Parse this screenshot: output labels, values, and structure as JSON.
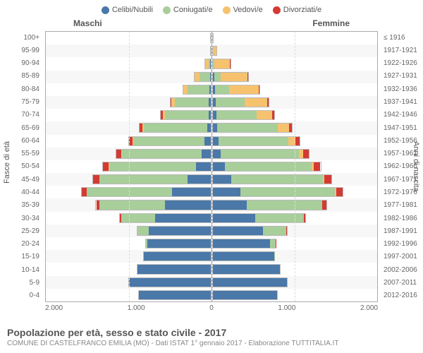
{
  "legend": [
    {
      "label": "Celibi/Nubili",
      "color": "#4a78a8"
    },
    {
      "label": "Coniugati/e",
      "color": "#a8ce9a"
    },
    {
      "label": "Vedovi/e",
      "color": "#f7c26e"
    },
    {
      "label": "Divorziati/e",
      "color": "#d43a34"
    }
  ],
  "gender": {
    "left": "Maschi",
    "right": "Femmine"
  },
  "axes": {
    "y_left_title": "Fasce di età",
    "y_right_title": "Anni di nascita",
    "x_ticks": [
      "2.000",
      "1.000",
      "0",
      "1.000",
      "2.000"
    ],
    "x_max": 2000
  },
  "rows": [
    {
      "age": "100+",
      "birth": "≤ 1916",
      "m": [
        0,
        0,
        3,
        0
      ],
      "f": [
        0,
        0,
        8,
        0
      ]
    },
    {
      "age": "95-99",
      "birth": "1917-1921",
      "m": [
        0,
        0,
        16,
        0
      ],
      "f": [
        0,
        2,
        60,
        0
      ]
    },
    {
      "age": "90-94",
      "birth": "1922-1926",
      "m": [
        2,
        30,
        50,
        0
      ],
      "f": [
        5,
        15,
        210,
        2
      ]
    },
    {
      "age": "85-89",
      "birth": "1927-1931",
      "m": [
        6,
        140,
        60,
        2
      ],
      "f": [
        20,
        80,
        340,
        6
      ]
    },
    {
      "age": "80-84",
      "birth": "1932-1936",
      "m": [
        12,
        280,
        50,
        6
      ],
      "f": [
        28,
        180,
        370,
        10
      ]
    },
    {
      "age": "75-79",
      "birth": "1937-1941",
      "m": [
        18,
        430,
        40,
        14
      ],
      "f": [
        40,
        360,
        280,
        16
      ]
    },
    {
      "age": "70-74",
      "birth": "1942-1946",
      "m": [
        26,
        540,
        28,
        22
      ],
      "f": [
        46,
        500,
        190,
        24
      ]
    },
    {
      "age": "65-69",
      "birth": "1947-1951",
      "m": [
        40,
        780,
        20,
        34
      ],
      "f": [
        60,
        740,
        140,
        38
      ]
    },
    {
      "age": "60-64",
      "birth": "1952-1956",
      "m": [
        70,
        880,
        12,
        44
      ],
      "f": [
        70,
        860,
        90,
        50
      ]
    },
    {
      "age": "55-59",
      "birth": "1957-1961",
      "m": [
        110,
        980,
        8,
        56
      ],
      "f": [
        100,
        960,
        56,
        64
      ]
    },
    {
      "age": "50-54",
      "birth": "1962-1966",
      "m": [
        180,
        1060,
        5,
        70
      ],
      "f": [
        150,
        1060,
        32,
        80
      ]
    },
    {
      "age": "45-49",
      "birth": "1967-1971",
      "m": [
        280,
        1080,
        3,
        76
      ],
      "f": [
        230,
        1120,
        18,
        90
      ]
    },
    {
      "age": "40-44",
      "birth": "1972-1976",
      "m": [
        470,
        1040,
        2,
        62
      ],
      "f": [
        340,
        1160,
        12,
        80
      ]
    },
    {
      "age": "35-39",
      "birth": "1977-1981",
      "m": [
        560,
        800,
        1,
        38
      ],
      "f": [
        420,
        920,
        6,
        46
      ]
    },
    {
      "age": "30-34",
      "birth": "1982-1986",
      "m": [
        680,
        420,
        0,
        14
      ],
      "f": [
        520,
        600,
        2,
        20
      ]
    },
    {
      "age": "25-29",
      "birth": "1987-1991",
      "m": [
        760,
        140,
        0,
        4
      ],
      "f": [
        620,
        290,
        0,
        6
      ]
    },
    {
      "age": "20-24",
      "birth": "1992-1996",
      "m": [
        780,
        16,
        0,
        0
      ],
      "f": [
        710,
        70,
        0,
        1
      ]
    },
    {
      "age": "15-19",
      "birth": "1997-2001",
      "m": [
        820,
        0,
        0,
        0
      ],
      "f": [
        760,
        2,
        0,
        0
      ]
    },
    {
      "age": "10-14",
      "birth": "2002-2006",
      "m": [
        900,
        0,
        0,
        0
      ],
      "f": [
        830,
        0,
        0,
        0
      ]
    },
    {
      "age": "5-9",
      "birth": "2007-2011",
      "m": [
        1000,
        0,
        0,
        0
      ],
      "f": [
        920,
        0,
        0,
        0
      ]
    },
    {
      "age": "0-4",
      "birth": "2012-2016",
      "m": [
        880,
        0,
        0,
        0
      ],
      "f": [
        800,
        0,
        0,
        0
      ]
    }
  ],
  "footer": {
    "title": "Popolazione per età, sesso e stato civile - 2017",
    "sub": "COMUNE DI CASTELFRANCO EMILIA (MO) - Dati ISTAT 1° gennaio 2017 - Elaborazione TUTTITALIA.IT"
  }
}
